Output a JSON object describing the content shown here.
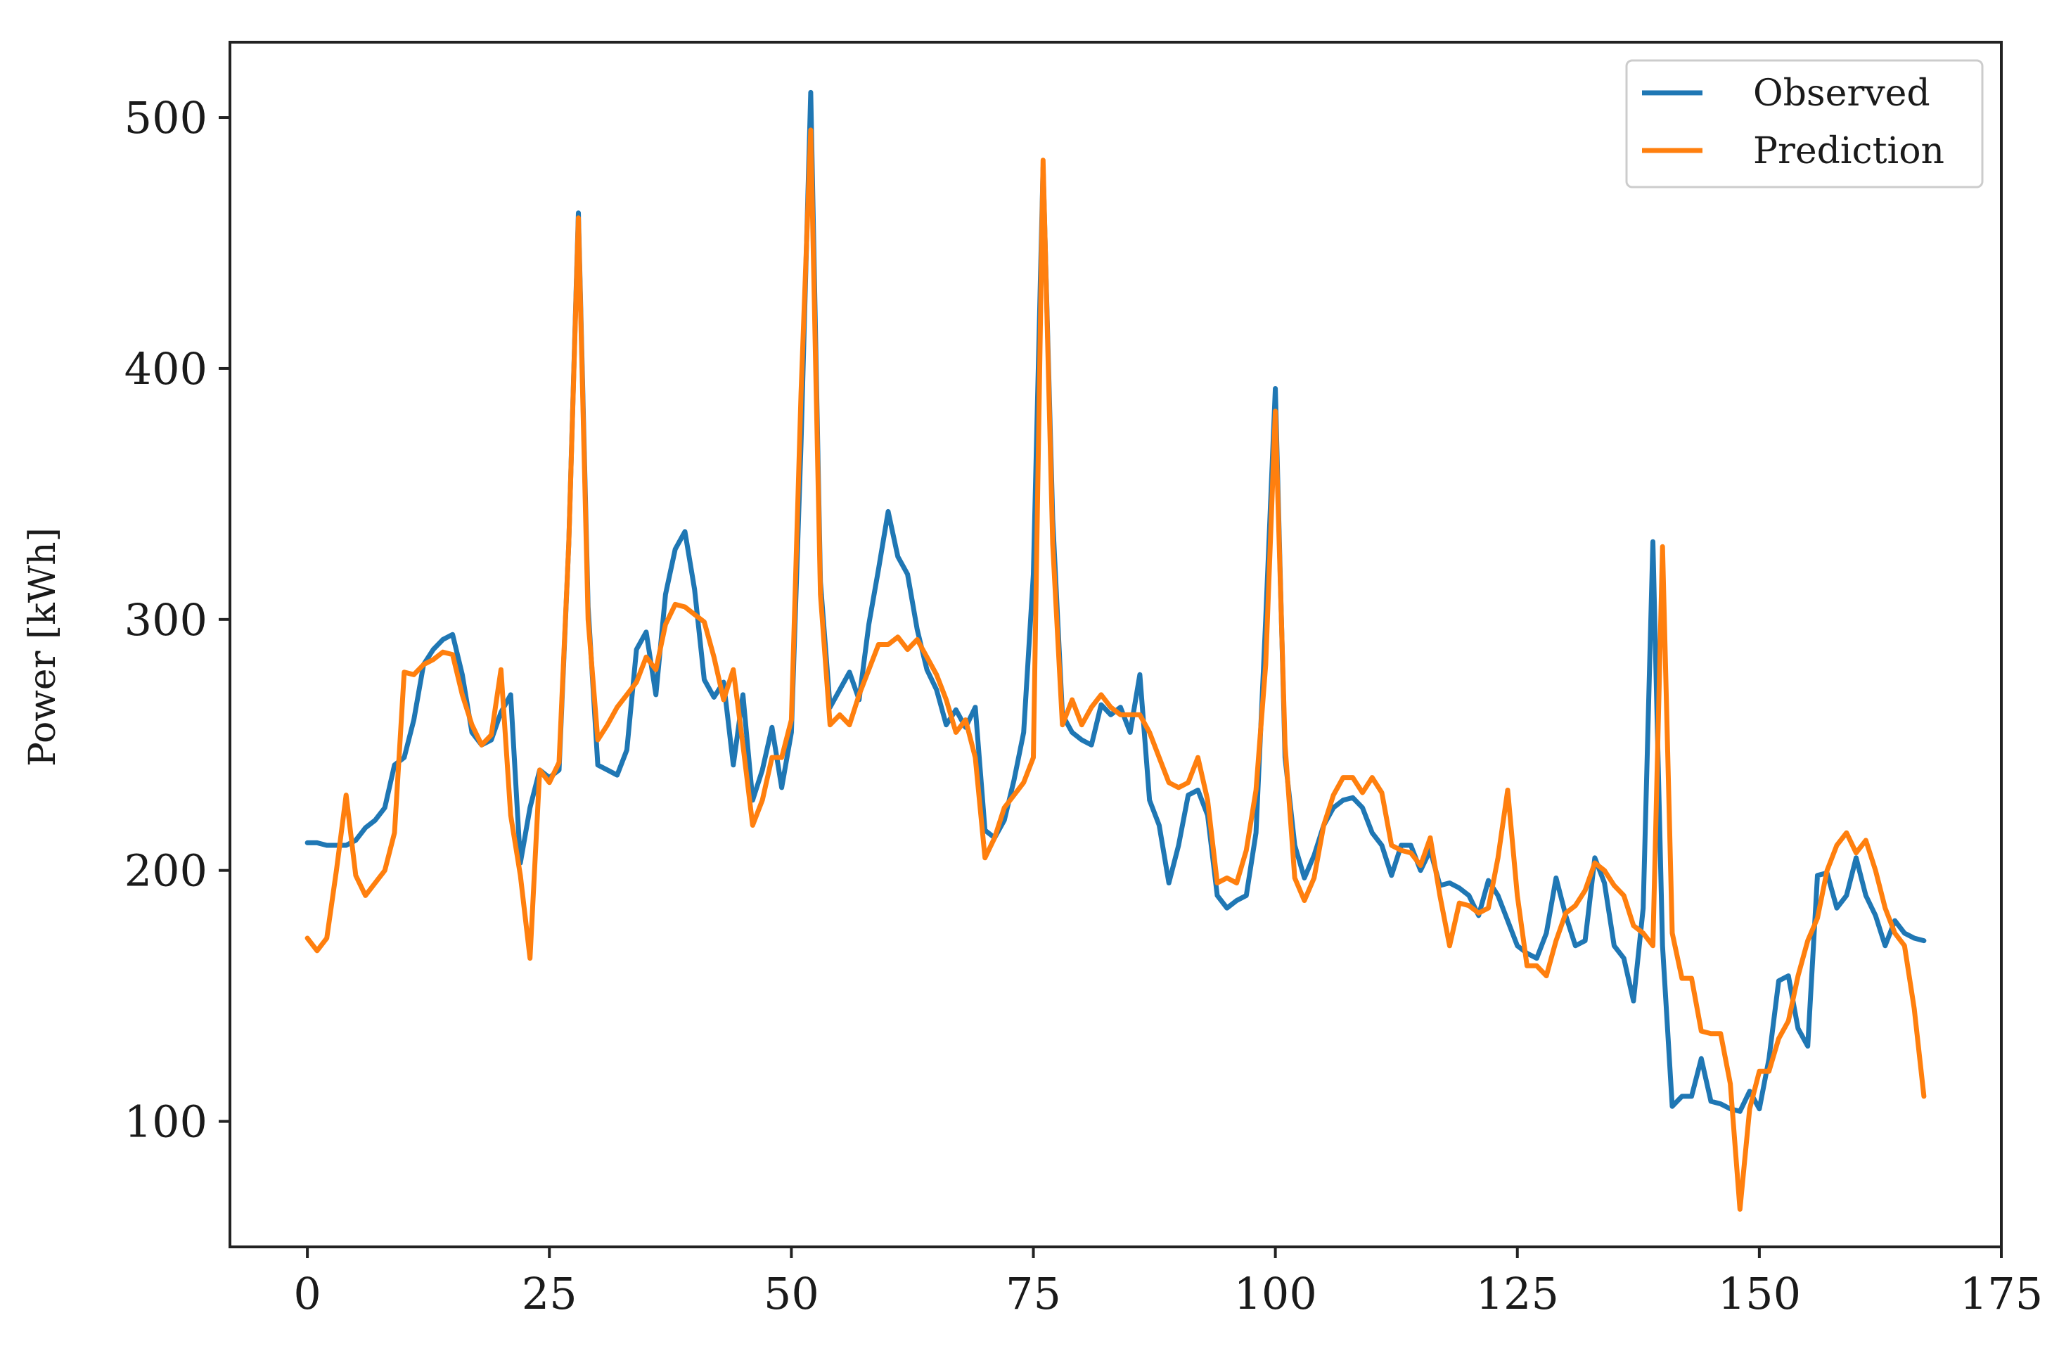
{
  "chart_data": {
    "type": "line",
    "title": "",
    "xlabel": "",
    "ylabel": "Power [kWh]",
    "xlim": [
      -8,
      175
    ],
    "ylim": [
      50,
      530
    ],
    "x_ticks": [
      0,
      25,
      50,
      75,
      100,
      125,
      150,
      175
    ],
    "y_ticks": [
      100,
      200,
      300,
      400,
      500
    ],
    "grid": false,
    "legend_position": "top-right",
    "series": [
      {
        "name": "Observed",
        "color": "#1f77b4",
        "x": [
          0,
          1,
          2,
          3,
          4,
          5,
          6,
          7,
          8,
          9,
          10,
          11,
          12,
          13,
          14,
          15,
          16,
          17,
          18,
          19,
          20,
          21,
          22,
          23,
          24,
          25,
          26,
          27,
          28,
          29,
          30,
          31,
          32,
          33,
          34,
          35,
          36,
          37,
          38,
          39,
          40,
          41,
          42,
          43,
          44,
          45,
          46,
          47,
          48,
          49,
          50,
          51,
          52,
          53,
          54,
          55,
          56,
          57,
          58,
          59,
          60,
          61,
          62,
          63,
          64,
          65,
          66,
          67,
          68,
          69,
          70,
          71,
          72,
          73,
          74,
          75,
          76,
          77,
          78,
          79,
          80,
          81,
          82,
          83,
          84,
          85,
          86,
          87,
          88,
          89,
          90,
          91,
          92,
          93,
          94,
          95,
          96,
          97,
          98,
          99,
          100,
          101,
          102,
          103,
          104,
          105,
          106,
          107,
          108,
          109,
          110,
          111,
          112,
          113,
          114,
          115,
          116,
          117,
          118,
          119,
          120,
          121,
          122,
          123,
          124,
          125,
          126,
          127,
          128,
          129,
          130,
          131,
          132,
          133,
          134,
          135,
          136,
          137,
          138,
          139,
          140,
          141,
          142,
          143,
          144,
          145,
          146,
          147,
          148,
          149,
          150,
          151,
          152,
          153,
          154,
          155,
          156,
          157,
          158,
          159,
          160,
          161,
          162,
          163,
          164,
          165,
          166,
          167
        ],
        "y": [
          211,
          211,
          210,
          210,
          210,
          212,
          217,
          220,
          225,
          242,
          245,
          260,
          282,
          288,
          292,
          294,
          278,
          255,
          250,
          252,
          263,
          270,
          203,
          225,
          240,
          237,
          240,
          330,
          462,
          305,
          242,
          240,
          238,
          248,
          288,
          295,
          270,
          310,
          328,
          335,
          312,
          276,
          269,
          275,
          242,
          270,
          228,
          240,
          257,
          233,
          255,
          370,
          510,
          315,
          265,
          272,
          279,
          268,
          298,
          320,
          343,
          325,
          318,
          296,
          280,
          272,
          258,
          264,
          257,
          265,
          216,
          213,
          220,
          236,
          255,
          318,
          480,
          340,
          262,
          255,
          252,
          250,
          266,
          262,
          265,
          255,
          278,
          228,
          218,
          195,
          210,
          230,
          232,
          222,
          190,
          185,
          188,
          190,
          215,
          300,
          392,
          245,
          210,
          197,
          206,
          218,
          225,
          228,
          229,
          225,
          215,
          210,
          198,
          210,
          210,
          200,
          208,
          194,
          195,
          193,
          190,
          182,
          196,
          190,
          180,
          170,
          167,
          165,
          175,
          197,
          182,
          170,
          172,
          205,
          195,
          170,
          165,
          148,
          185,
          331,
          170,
          106,
          110,
          110,
          125,
          108,
          107,
          105,
          104,
          112,
          105,
          125,
          156,
          158,
          137,
          130,
          198,
          199,
          185,
          190,
          205,
          190,
          182,
          170,
          180,
          175,
          173,
          172
        ]
      },
      {
        "name": "Prediction",
        "color": "#ff7f0e",
        "x": [
          0,
          1,
          2,
          3,
          4,
          5,
          6,
          7,
          8,
          9,
          10,
          11,
          12,
          13,
          14,
          15,
          16,
          17,
          18,
          19,
          20,
          21,
          22,
          23,
          24,
          25,
          26,
          27,
          28,
          29,
          30,
          31,
          32,
          33,
          34,
          35,
          36,
          37,
          38,
          39,
          40,
          41,
          42,
          43,
          44,
          45,
          46,
          47,
          48,
          49,
          50,
          51,
          52,
          53,
          54,
          55,
          56,
          57,
          58,
          59,
          60,
          61,
          62,
          63,
          64,
          65,
          66,
          67,
          68,
          69,
          70,
          71,
          72,
          73,
          74,
          75,
          76,
          77,
          78,
          79,
          80,
          81,
          82,
          83,
          84,
          85,
          86,
          87,
          88,
          89,
          90,
          91,
          92,
          93,
          94,
          95,
          96,
          97,
          98,
          99,
          100,
          101,
          102,
          103,
          104,
          105,
          106,
          107,
          108,
          109,
          110,
          111,
          112,
          113,
          114,
          115,
          116,
          117,
          118,
          119,
          120,
          121,
          122,
          123,
          124,
          125,
          126,
          127,
          128,
          129,
          130,
          131,
          132,
          133,
          134,
          135,
          136,
          137,
          138,
          139,
          140,
          141,
          142,
          143,
          144,
          145,
          146,
          147,
          148,
          149,
          150,
          151,
          152,
          153,
          154,
          155,
          156,
          157,
          158,
          159,
          160,
          161,
          162,
          163,
          164,
          165,
          166,
          167
        ],
        "y": [
          173,
          168,
          173,
          200,
          230,
          198,
          190,
          195,
          200,
          215,
          279,
          278,
          282,
          284,
          287,
          286,
          270,
          258,
          250,
          254,
          280,
          222,
          198,
          165,
          240,
          235,
          243,
          330,
          460,
          300,
          252,
          258,
          265,
          270,
          275,
          285,
          280,
          298,
          306,
          305,
          302,
          299,
          285,
          268,
          280,
          250,
          218,
          228,
          245,
          245,
          260,
          390,
          495,
          310,
          258,
          262,
          258,
          270,
          280,
          290,
          290,
          293,
          288,
          292,
          285,
          278,
          268,
          255,
          260,
          245,
          205,
          213,
          225,
          230,
          235,
          245,
          483,
          330,
          258,
          268,
          258,
          265,
          270,
          265,
          262,
          262,
          262,
          255,
          245,
          235,
          233,
          235,
          245,
          228,
          195,
          197,
          195,
          208,
          232,
          282,
          383,
          250,
          197,
          188,
          197,
          218,
          230,
          237,
          237,
          231,
          237,
          231,
          210,
          208,
          207,
          202,
          213,
          190,
          170,
          187,
          186,
          183,
          185,
          205,
          232,
          190,
          162,
          162,
          158,
          172,
          183,
          186,
          192,
          203,
          200,
          194,
          190,
          178,
          175,
          170,
          329,
          175,
          157,
          157,
          136,
          135,
          135,
          115,
          65,
          105,
          120,
          120,
          133,
          140,
          158,
          172,
          181,
          200,
          210,
          215,
          207,
          212,
          200,
          185,
          175,
          170,
          145,
          110
        ]
      }
    ]
  }
}
